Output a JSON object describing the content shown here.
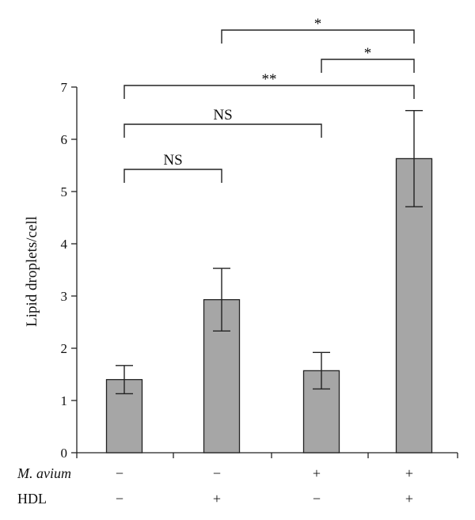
{
  "chart_data": {
    "type": "bar",
    "title": "",
    "xlabel": "",
    "ylabel": "Lipid droplets/cell",
    "ylim": [
      0,
      7
    ],
    "yticks": [
      0,
      1,
      2,
      3,
      4,
      5,
      6,
      7
    ],
    "grid": false,
    "categories": [
      "M. avium − / HDL −",
      "M. avium − / HDL +",
      "M. avium + / HDL −",
      "M. avium + / HDL +"
    ],
    "values": [
      1.4,
      2.93,
      1.57,
      5.63
    ],
    "errors": [
      0.27,
      0.6,
      0.35,
      0.92
    ],
    "bar_color": "#a6a6a6",
    "conditions": [
      {
        "label": "M. avium",
        "italic": true,
        "symbols": [
          "−",
          "−",
          "+",
          "+"
        ]
      },
      {
        "label": "HDL",
        "italic": false,
        "symbols": [
          "−",
          "+",
          "−",
          "+"
        ]
      }
    ],
    "comparisons": [
      {
        "from": 1,
        "to": 3,
        "label": "*"
      },
      {
        "from": 2,
        "to": 3,
        "label": "*"
      },
      {
        "from": 0,
        "to": 3,
        "label": "**"
      },
      {
        "from": 0,
        "to": 2,
        "label": "NS"
      },
      {
        "from": 0,
        "to": 1,
        "label": "NS"
      }
    ]
  }
}
